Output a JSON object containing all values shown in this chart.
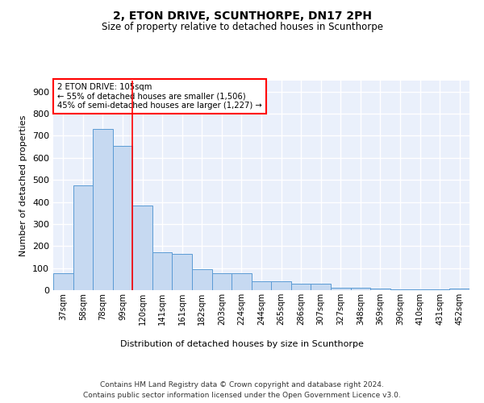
{
  "title1": "2, ETON DRIVE, SCUNTHORPE, DN17 2PH",
  "title2": "Size of property relative to detached houses in Scunthorpe",
  "xlabel": "Distribution of detached houses by size in Scunthorpe",
  "ylabel": "Number of detached properties",
  "categories": [
    "37sqm",
    "58sqm",
    "78sqm",
    "99sqm",
    "120sqm",
    "141sqm",
    "161sqm",
    "182sqm",
    "203sqm",
    "224sqm",
    "244sqm",
    "265sqm",
    "286sqm",
    "307sqm",
    "327sqm",
    "348sqm",
    "369sqm",
    "390sqm",
    "410sqm",
    "431sqm",
    "452sqm"
  ],
  "values": [
    75,
    475,
    730,
    655,
    385,
    170,
    165,
    95,
    75,
    75,
    40,
    40,
    30,
    30,
    12,
    10,
    8,
    5,
    3,
    3,
    8
  ],
  "bar_color": "#c6d9f1",
  "bar_edge_color": "#5b9bd5",
  "vline_x": 3.5,
  "annotation_text": "2 ETON DRIVE: 105sqm\n← 55% of detached houses are smaller (1,506)\n45% of semi-detached houses are larger (1,227) →",
  "annotation_box_color": "white",
  "annotation_box_edge_color": "red",
  "vline_color": "red",
  "ylim": [
    0,
    950
  ],
  "yticks": [
    0,
    100,
    200,
    300,
    400,
    500,
    600,
    700,
    800,
    900
  ],
  "bg_color": "#eaf0fb",
  "grid_color": "white",
  "footer": "Contains HM Land Registry data © Crown copyright and database right 2024.\nContains public sector information licensed under the Open Government Licence v3.0."
}
